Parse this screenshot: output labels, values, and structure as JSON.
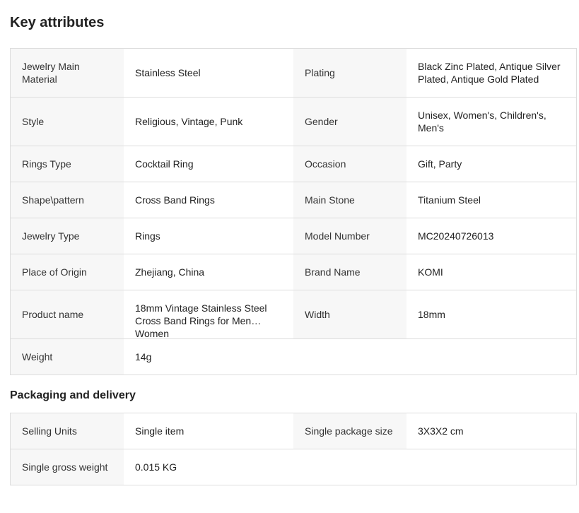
{
  "key_attributes": {
    "title": "Key attributes",
    "rows": [
      [
        {
          "label": "Jewelry Main Material",
          "value": "Stainless Steel"
        },
        {
          "label": "Plating",
          "value": "Black Zinc Plated, Antique Silver Plated, Antique Gold Plated"
        }
      ],
      [
        {
          "label": "Style",
          "value": "Religious, Vintage, Punk"
        },
        {
          "label": "Gender",
          "value": "Unisex, Women's, Children's, Men's"
        }
      ],
      [
        {
          "label": "Rings Type",
          "value": "Cocktail Ring"
        },
        {
          "label": "Occasion",
          "value": "Gift, Party"
        }
      ],
      [
        {
          "label": "Shape\\pattern",
          "value": "Cross Band Rings"
        },
        {
          "label": "Main Stone",
          "value": "Titanium Steel"
        }
      ],
      [
        {
          "label": "Jewelry Type",
          "value": "Rings"
        },
        {
          "label": "Model Number",
          "value": "MC20240726013"
        }
      ],
      [
        {
          "label": "Place of Origin",
          "value": "Zhejiang, China"
        },
        {
          "label": "Brand Name",
          "value": "KOMI"
        }
      ],
      [
        {
          "label": "Product name",
          "value": "18mm Vintage Stainless Steel Cross Band Rings for Men Women"
        },
        {
          "label": "Width",
          "value": "18mm"
        }
      ],
      [
        {
          "label": "Weight",
          "value": "14g"
        }
      ]
    ]
  },
  "packaging": {
    "title": "Packaging and delivery",
    "rows": [
      [
        {
          "label": "Selling Units",
          "value": "Single item"
        },
        {
          "label": "Single package size",
          "value": "3X3X2 cm"
        }
      ],
      [
        {
          "label": "Single gross weight",
          "value": "0.015 KG"
        }
      ]
    ]
  }
}
